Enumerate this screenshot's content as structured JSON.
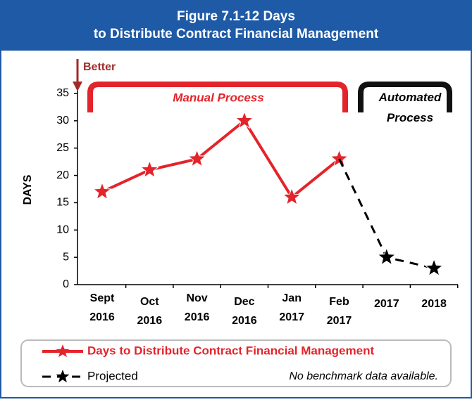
{
  "chart_data": {
    "type": "line",
    "title": "Figure 7.1-12 Days to Distribute Contract Financial Management",
    "y_label": "DAYS",
    "categories": [
      "Sept 2016",
      "Oct 2016",
      "Nov 2016",
      "Dec 2016",
      "Jan 2017",
      "Feb 2017",
      "2017",
      "2018"
    ],
    "series": [
      {
        "name": "Days to Distribute Contract Financial Management",
        "color": "#e3242b",
        "values": [
          17,
          21,
          23,
          30,
          16,
          23,
          null,
          null
        ]
      },
      {
        "name": "Projected",
        "color": "#000000",
        "values": [
          null,
          null,
          null,
          null,
          null,
          23,
          5,
          3
        ]
      }
    ],
    "ylim": [
      0,
      35
    ],
    "yticks": [
      0,
      5,
      10,
      15,
      20,
      25,
      30,
      35
    ],
    "annotations": {
      "better": "Better",
      "manual": "Manual Process",
      "automated": "Automated Process",
      "note": "No benchmark data available."
    }
  }
}
